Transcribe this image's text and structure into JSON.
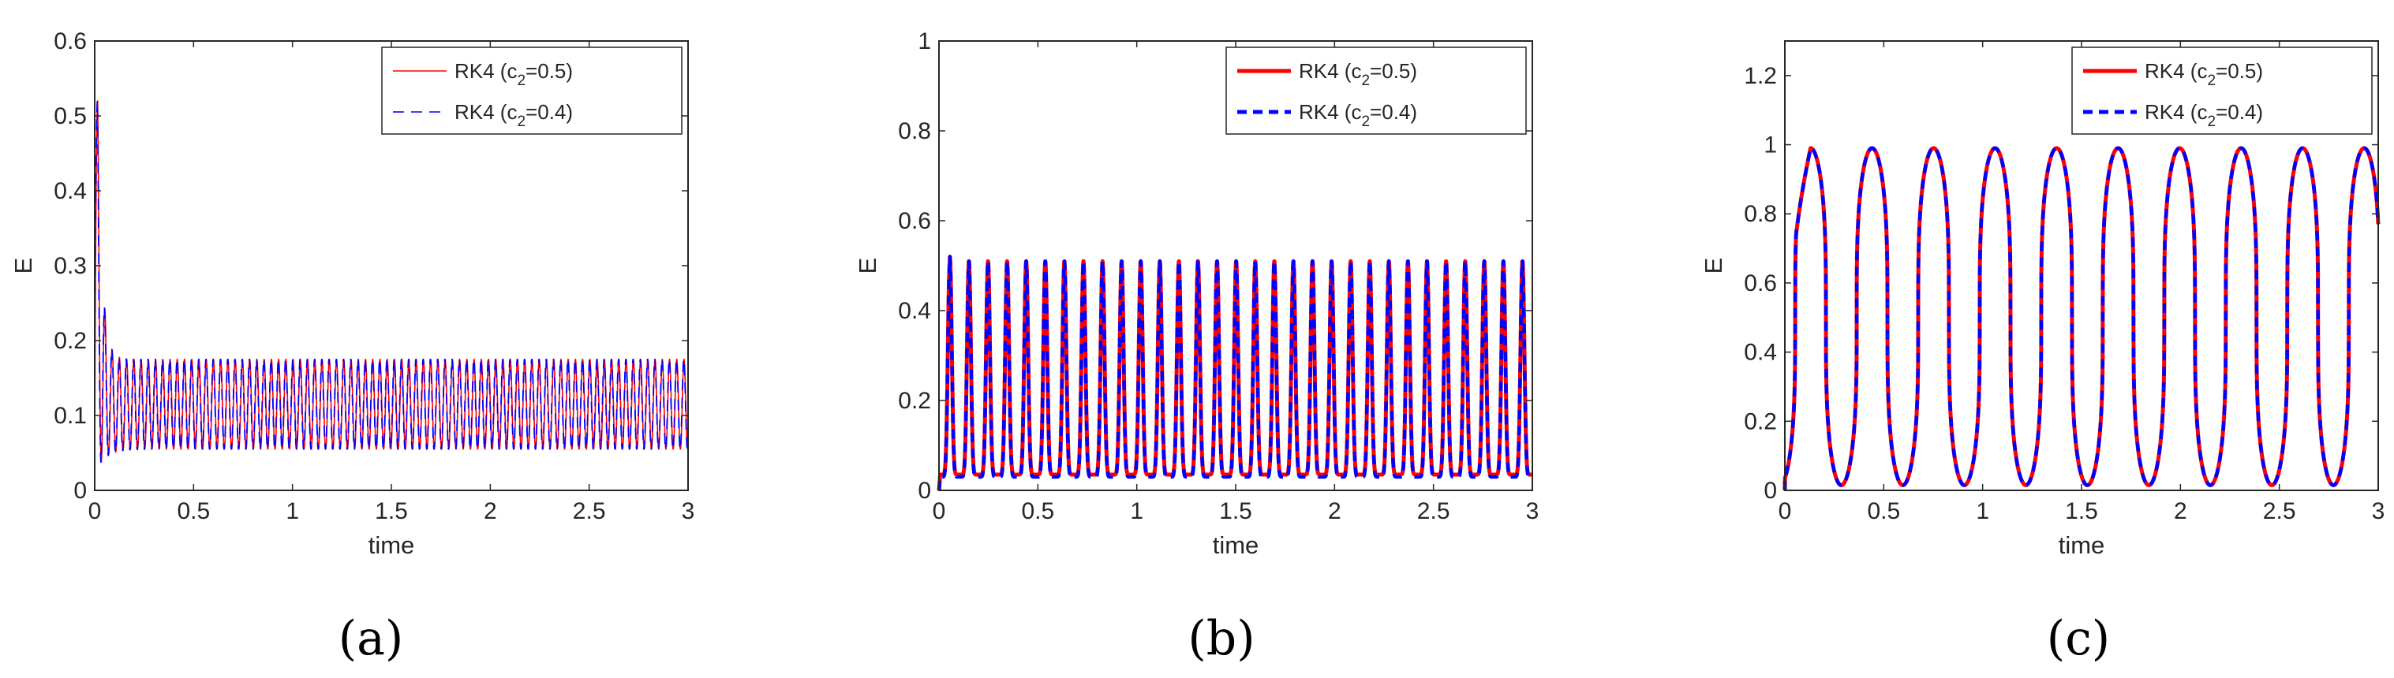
{
  "figure": {
    "captions": [
      "(a)",
      "(b)",
      "(c)"
    ]
  },
  "colors": {
    "red_series": "#ff0000",
    "blue_series": "#0000ff",
    "axes": "#262626",
    "legend_border": "#262626"
  },
  "chart_data": [
    {
      "type": "line",
      "panel": "(a)",
      "xlabel": "time",
      "ylabel": "E",
      "xlim": [
        0,
        3
      ],
      "ylim": [
        0,
        0.6
      ],
      "xticks": [
        0,
        0.5,
        1,
        1.5,
        2,
        2.5,
        3
      ],
      "xtick_labels": [
        "0",
        "0.5",
        "1",
        "1.5",
        "2",
        "2.5",
        "3"
      ],
      "yticks": [
        0,
        0.1,
        0.2,
        0.3,
        0.4,
        0.5,
        0.6
      ],
      "ytick_labels": [
        "0",
        "0.1",
        "0.2",
        "0.3",
        "0.4",
        "0.5",
        "0.6"
      ],
      "legend_placement": "top-right",
      "line_weight": "thin",
      "series": [
        {
          "name": "RK4 (c2=0.5)",
          "label_main": "RK4 (c",
          "label_sub": "2",
          "label_tail": "=0.5)",
          "color": "#ff0000",
          "style": "solid"
        },
        {
          "name": "RK4 (c2=0.4)",
          "label_main": "RK4 (c",
          "label_sub": "2",
          "label_tail": "=0.4)",
          "color": "#0000ff",
          "style": "dashed"
        }
      ],
      "model": {
        "kind": "damped",
        "period": 0.0366,
        "initial_peak": 0.52,
        "trough": 0.055,
        "steady_peak": 0.175,
        "first_peak_time": 0.015,
        "decay_rate": 14,
        "first_min": 0.03
      }
    },
    {
      "type": "line",
      "panel": "(b)",
      "xlabel": "time",
      "ylabel": "E",
      "xlim": [
        0,
        3
      ],
      "ylim": [
        0,
        1
      ],
      "xticks": [
        0,
        0.5,
        1,
        1.5,
        2,
        2.5,
        3
      ],
      "xtick_labels": [
        "0",
        "0.5",
        "1",
        "1.5",
        "2",
        "2.5",
        "3"
      ],
      "yticks": [
        0,
        0.2,
        0.4,
        0.6,
        0.8,
        1
      ],
      "ytick_labels": [
        "0",
        "0.2",
        "0.4",
        "0.6",
        "0.8",
        "1"
      ],
      "legend_placement": "top-right",
      "line_weight": "thick",
      "series": [
        {
          "name": "RK4 (c2=0.5)",
          "label_main": "RK4 (c",
          "label_sub": "2",
          "label_tail": "=0.5)",
          "color": "#ff0000",
          "style": "solid"
        },
        {
          "name": "RK4 (c2=0.4)",
          "label_main": "RK4 (c",
          "label_sub": "2",
          "label_tail": "=0.4)",
          "color": "#0000ff",
          "style": "dashed"
        }
      ],
      "model": {
        "kind": "spiky",
        "period": 0.0965,
        "first_peak_time": 0.055,
        "peak": 0.51,
        "first_peak": 0.52,
        "min_red": 0.035,
        "min_blue": 0.03,
        "sharpness": 5
      }
    },
    {
      "type": "line",
      "panel": "(c)",
      "xlabel": "time",
      "ylabel": "E",
      "xlim": [
        0,
        3
      ],
      "ylim": [
        0,
        1.3
      ],
      "xticks": [
        0,
        0.5,
        1,
        1.5,
        2,
        2.5,
        3
      ],
      "xtick_labels": [
        "0",
        "0.5",
        "1",
        "1.5",
        "2",
        "2.5",
        "3"
      ],
      "yticks": [
        0,
        0.2,
        0.4,
        0.6,
        0.8,
        1,
        1.2
      ],
      "ytick_labels": [
        "0",
        "0.2",
        "0.4",
        "0.6",
        "0.8",
        "1",
        "1.2"
      ],
      "legend_placement": "top-right",
      "line_weight": "thick",
      "series": [
        {
          "name": "RK4 (c2=0.5)",
          "label_main": "RK4 (c",
          "label_sub": "2",
          "label_tail": "=0.5)",
          "color": "#ff0000",
          "style": "solid"
        },
        {
          "name": "RK4 (c2=0.4)",
          "label_main": "RK4 (c",
          "label_sub": "2",
          "label_tail": "=0.4)",
          "color": "#0000ff",
          "style": "dashed"
        }
      ],
      "model": {
        "kind": "flat",
        "period": 0.311,
        "peak": 0.99,
        "min": 0.015,
        "first_peak_time": 0.13,
        "flatness": 0.3
      }
    }
  ]
}
